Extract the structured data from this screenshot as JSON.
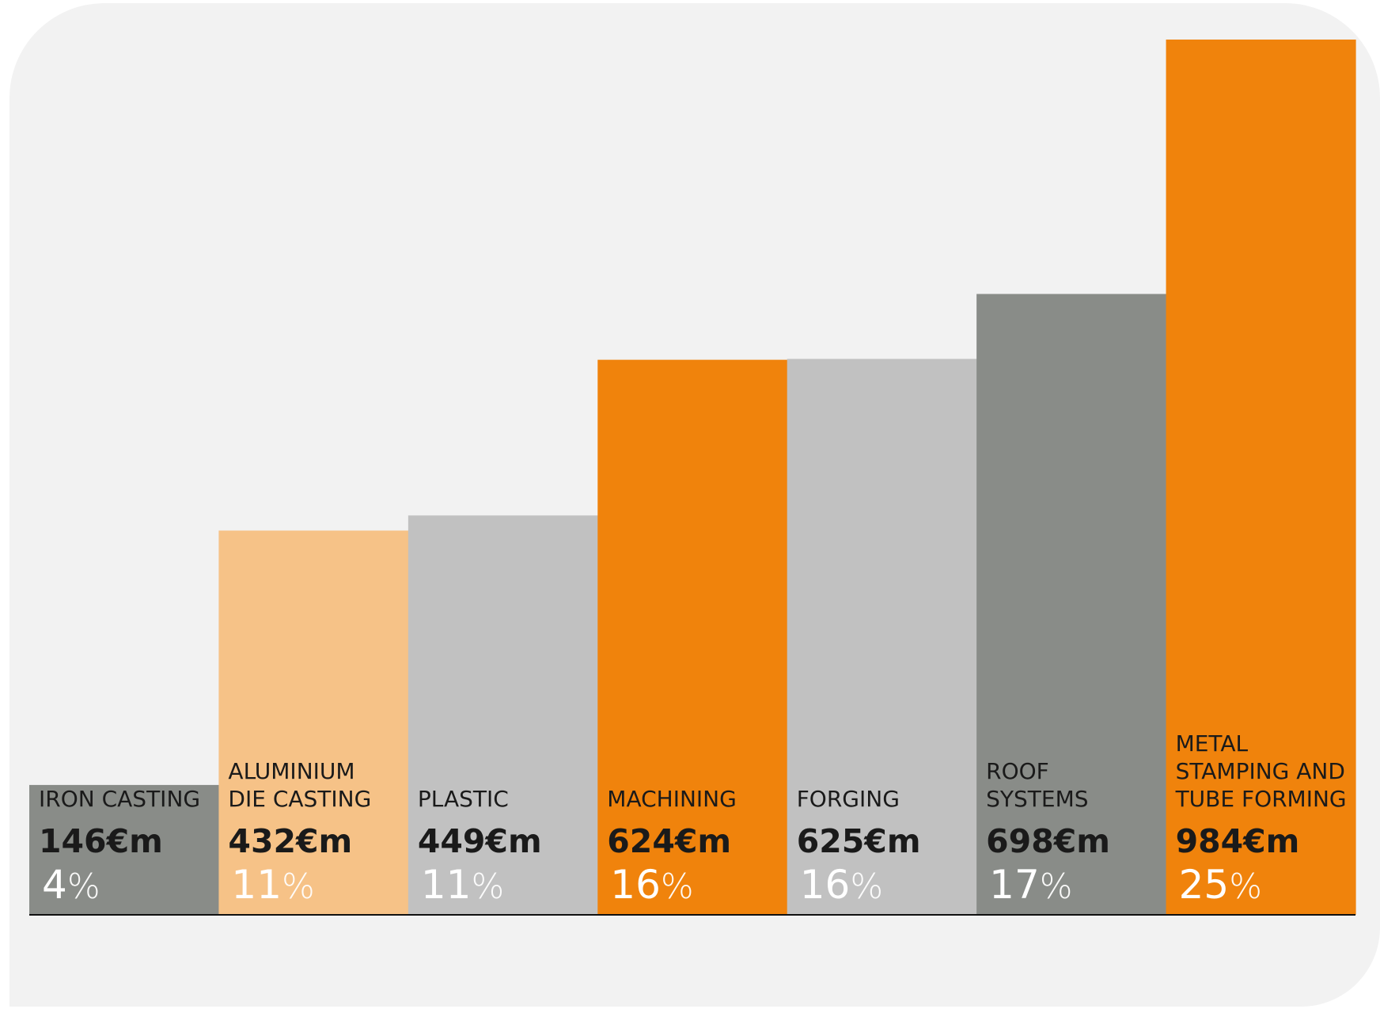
{
  "colors": {
    "background": "#f2f2f2",
    "dark_grey": "#898c88",
    "light_orange": "#f6c287",
    "light_grey": "#c1c1c1",
    "orange": "#f0830c",
    "text": "#1a1a1a",
    "percent_text": "#ffffff",
    "baseline": "#111111"
  },
  "chart_data": {
    "type": "bar",
    "title": "",
    "xlabel": "",
    "ylabel": "",
    "ylim": [
      0,
      1050
    ],
    "grid": false,
    "legend": "none",
    "categories": [
      "IRON CASTING",
      "ALUMINIUM DIE CASTING",
      "PLASTIC",
      "MACHINING",
      "FORGING",
      "ROOF SYSTEMS",
      "METAL STAMPING AND TUBE FORMING"
    ],
    "label_lines": [
      [
        "IRON CASTING"
      ],
      [
        "ALUMINIUM",
        "DIE CASTING"
      ],
      [
        "PLASTIC"
      ],
      [
        "MACHINING"
      ],
      [
        "FORGING"
      ],
      [
        "ROOF",
        "SYSTEMS"
      ],
      [
        "METAL",
        "STAMPING AND",
        "TUBE FORMING"
      ]
    ],
    "values": [
      146,
      432,
      449,
      624,
      625,
      698,
      984
    ],
    "value_labels": [
      "146€m",
      "432€m",
      "449€m",
      "624€m",
      "625€m",
      "698€m",
      "984€m"
    ],
    "percents": [
      "4",
      "11",
      "11",
      "16",
      "16",
      "17",
      "25"
    ],
    "percent_symbol": "%",
    "bar_colors": [
      "#898c88",
      "#f6c287",
      "#c1c1c1",
      "#f0830c",
      "#c1c1c1",
      "#898c88",
      "#f0830c"
    ]
  }
}
